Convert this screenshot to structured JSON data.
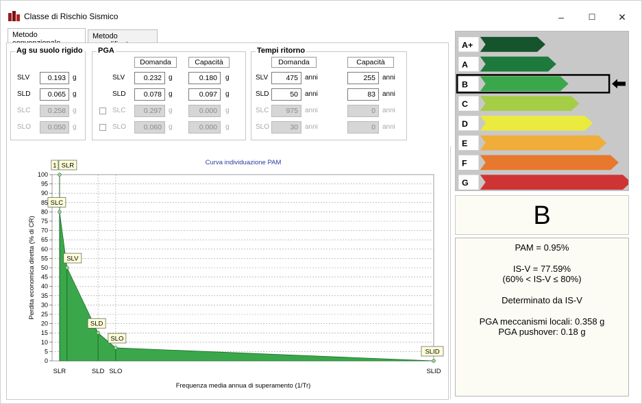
{
  "window": {
    "title": "Classe di Rischio Sismico",
    "controls": {
      "minimize": "–",
      "maximize": "☐",
      "close": "✕"
    }
  },
  "tabs": [
    {
      "label": "Metodo convenzionale"
    },
    {
      "label": "Metodo semplificato"
    }
  ],
  "ag": {
    "title": "Ag su suolo rigido",
    "rows": [
      {
        "label": "SLV",
        "value": "0.193",
        "unit": "g",
        "disabled": false
      },
      {
        "label": "SLD",
        "value": "0.065",
        "unit": "g",
        "disabled": false
      },
      {
        "label": "SLC",
        "value": "0.258",
        "unit": "g",
        "disabled": true
      },
      {
        "label": "SLO",
        "value": "0.050",
        "unit": "g",
        "disabled": true
      }
    ]
  },
  "pga": {
    "title": "PGA",
    "col_domanda": "Domanda",
    "col_capacita": "Capacità",
    "rows": [
      {
        "label": "SLV",
        "domanda": "0.232",
        "capacita": "0.180",
        "unit": "g",
        "disabled": false
      },
      {
        "label": "SLD",
        "domanda": "0.078",
        "capacita": "0.097",
        "unit": "g",
        "disabled": false
      },
      {
        "label": "SLC",
        "domanda": "0.297",
        "capacita": "0.000",
        "unit": "g",
        "disabled": true
      },
      {
        "label": "SLO",
        "domanda": "0.060",
        "capacita": "0.000",
        "unit": "g",
        "disabled": true
      }
    ]
  },
  "tempi": {
    "title": "Tempi ritorno",
    "col_domanda": "Domanda",
    "col_capacita": "Capacità",
    "rows": [
      {
        "label": "SLV",
        "domanda": "475",
        "capacita": "255",
        "unit": "anni",
        "disabled": false
      },
      {
        "label": "SLD",
        "domanda": "50",
        "capacita": "83",
        "unit": "anni",
        "disabled": false
      },
      {
        "label": "SLC",
        "domanda": "975",
        "capacita": "0",
        "unit": "anni",
        "disabled": true
      },
      {
        "label": "SLO",
        "domanda": "30",
        "capacita": "0",
        "unit": "anni",
        "disabled": true
      }
    ]
  },
  "chart_data": {
    "type": "area",
    "title": "Curva individuazione PAM",
    "xlabel": "Frequenza media annua di superamento (1/Tr)",
    "ylabel": "Perdita economica diretta (% di CR)",
    "ylim": [
      0,
      100
    ],
    "yticks": [
      0,
      5,
      10,
      15,
      20,
      25,
      30,
      35,
      40,
      45,
      50,
      55,
      60,
      65,
      70,
      75,
      80,
      85,
      90,
      95,
      100
    ],
    "x_tick_labels": [
      "SLR",
      "SLD",
      "SLO",
      "SLID"
    ],
    "grid": true,
    "color": "#3aa84a",
    "points": [
      {
        "label": "SLR",
        "x": 0.0196,
        "y": 100
      },
      {
        "label": "SLC",
        "x": 0.0196,
        "y": 80
      },
      {
        "label": "SLV",
        "x": 0.0392,
        "y": 50
      },
      {
        "label": "SLD",
        "x": 0.1205,
        "y": 15
      },
      {
        "label": "SLO",
        "x": 0.1667,
        "y": 7
      },
      {
        "label": "SLID",
        "x": 1.0,
        "y": 0
      }
    ],
    "extra_label": "1"
  },
  "classes": [
    {
      "label": "A+",
      "color": "#15542c",
      "selected": false
    },
    {
      "label": "A",
      "color": "#1e7a3c",
      "selected": false
    },
    {
      "label": "B",
      "color": "#3aa84a",
      "selected": true
    },
    {
      "label": "C",
      "color": "#a5cd45",
      "selected": false
    },
    {
      "label": "D",
      "color": "#eaea3f",
      "selected": false
    },
    {
      "label": "E",
      "color": "#f0ad3a",
      "selected": false
    },
    {
      "label": "F",
      "color": "#e7782e",
      "selected": false
    },
    {
      "label": "G",
      "color": "#cf3434",
      "selected": false
    }
  ],
  "result": {
    "class": "B"
  },
  "info": {
    "pam": "PAM = 0.95%",
    "isv": "IS-V = 77.59%",
    "isv_range": "(60% < IS-V ≤ 80%)",
    "determinato": "Determinato da IS-V",
    "pga_locali": "PGA meccanismi locali: 0.358 g",
    "pga_pushover": "PGA pushover: 0.18 g"
  }
}
